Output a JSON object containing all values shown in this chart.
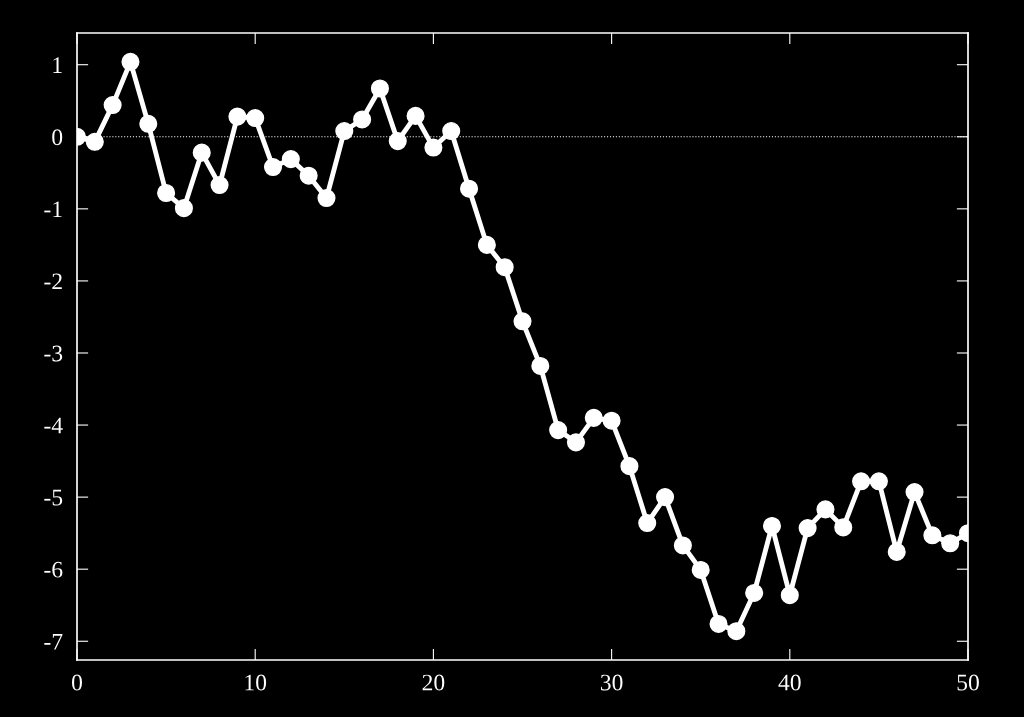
{
  "chart_data": {
    "type": "line",
    "x": [
      0,
      1,
      2,
      3,
      4,
      5,
      6,
      7,
      8,
      9,
      10,
      11,
      12,
      13,
      14,
      15,
      16,
      17,
      18,
      19,
      20,
      21,
      22,
      23,
      24,
      25,
      26,
      27,
      28,
      29,
      30,
      31,
      32,
      33,
      34,
      35,
      36,
      37,
      38,
      39,
      40,
      41,
      42,
      43,
      44,
      45,
      46,
      47,
      48,
      49,
      50
    ],
    "series": [
      {
        "color": "#ffffff",
        "values": [
          0,
          -0.07,
          0.44,
          1.04,
          0.18,
          -0.78,
          -0.99,
          -0.22,
          -0.67,
          0.28,
          0.26,
          -0.42,
          -0.31,
          -0.54,
          -0.85,
          0.08,
          0.24,
          0.67,
          -0.06,
          0.29,
          -0.15,
          0.08,
          -0.72,
          -1.5,
          -1.81,
          -2.56,
          -3.18,
          -4.07,
          -4.24,
          -3.9,
          -3.94,
          -4.57,
          -5.36,
          -5.0,
          -5.67,
          -6.01,
          -6.76,
          -6.86,
          -6.33,
          -5.4,
          -6.36,
          -5.43,
          -5.17,
          -5.42,
          -4.78,
          -4.78,
          -5.76,
          -4.93,
          -5.53,
          -5.64,
          -5.5
        ]
      }
    ],
    "xlim": [
      0,
      50
    ],
    "xticks": [
      0,
      10,
      20,
      30,
      40,
      50
    ],
    "ylim": [
      -7.26,
      1.44
    ],
    "yticks": [
      -7,
      -6,
      -5,
      -4,
      -3,
      -2,
      -1,
      0,
      1
    ],
    "ref_lines": [
      {
        "axis": "y",
        "value": 0,
        "color": "#ffffff",
        "line_style": "dotted"
      }
    ],
    "marker": "circle",
    "line_style": "solid",
    "grid": false,
    "legend": false
  }
}
